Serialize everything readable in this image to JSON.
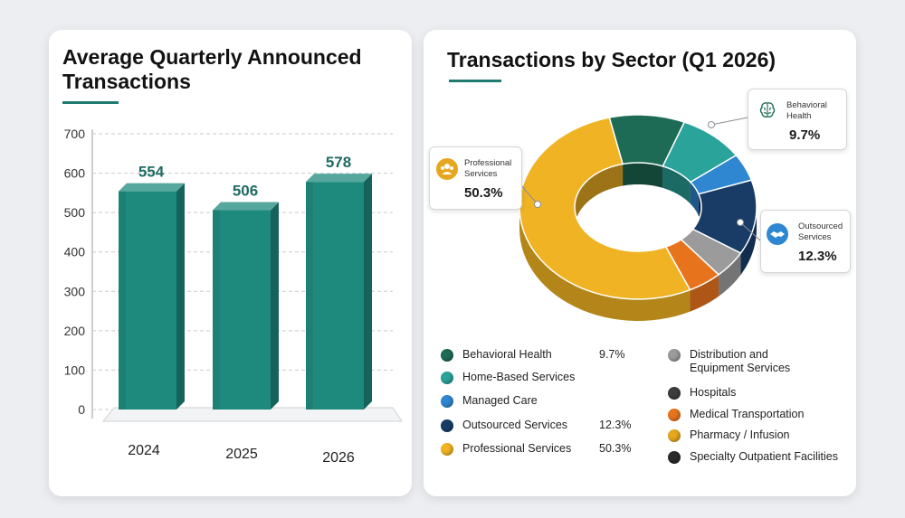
{
  "colors": {
    "bar": "#1e8a7e",
    "accent": "#1f7a70",
    "behavioral": "#1d6b55",
    "home": "#2aa39a",
    "managed": "#2f86d1",
    "outsourced": "#183c66",
    "professional": "#f0b323",
    "distribution": "#9b9b9b",
    "hospitals": "#3d3d3d",
    "medical": "#e8731d",
    "pharmacy": "#e6a61e",
    "specialty": "#2a2a2a"
  },
  "chart_data": [
    {
      "type": "bar",
      "title": "Average Quarterly Announced Transactions",
      "categories": [
        "2024",
        "2025",
        "2026"
      ],
      "values": [
        554,
        506,
        578
      ],
      "value_labels": [
        "554",
        "506",
        "578"
      ],
      "y_ticks": [
        "0",
        "100",
        "200",
        "300",
        "400",
        "500",
        "600",
        "700"
      ],
      "ylim": [
        0,
        700
      ],
      "grid": true
    },
    {
      "type": "pie",
      "title": "Transactions by Sector (Q1 2026)",
      "slices": [
        {
          "name": "Behavioral Health",
          "value": 9.7,
          "color_key": "behavioral"
        },
        {
          "name": "Home-Based Services",
          "value": 8.6,
          "color_key": "home"
        },
        {
          "name": "Managed Care",
          "value": 4.5,
          "color_key": "managed"
        },
        {
          "name": "Outsourced Services",
          "value": 12.3,
          "color_key": "outsourced"
        },
        {
          "name": "Distribution and Equipment Services",
          "value": 4.5,
          "color_key": "distribution"
        },
        {
          "name": "Medical Transportation",
          "value": 4.4,
          "color_key": "medical"
        },
        {
          "name": "Professional Services",
          "value": 50.3,
          "color_key": "professional"
        }
      ]
    }
  ],
  "callouts": {
    "professional": {
      "label_line1": "Professional",
      "label_line2": "Services",
      "value": "50.3%"
    },
    "behavioral": {
      "label_line1": "Behavioral",
      "label_line2": "Health",
      "value": "9.7%"
    },
    "outsourced": {
      "label_line1": "Outsourced",
      "label_line2": "Services",
      "value": "12.3%"
    }
  },
  "legend": {
    "left": [
      {
        "label": "Behavioral Health",
        "value": "9.7%",
        "color_key": "behavioral"
      },
      {
        "label": "Home-Based Services",
        "value": "",
        "color_key": "home"
      },
      {
        "label": "Managed Care",
        "value": "",
        "color_key": "managed"
      },
      {
        "label": "Outsourced Services",
        "value": "12.3%",
        "color_key": "outsourced"
      },
      {
        "label": "Professional Services",
        "value": "50.3%",
        "color_key": "professional"
      }
    ],
    "right": [
      {
        "label": "Distribution and",
        "label2": "Equipment Services",
        "color_key": "distribution"
      },
      {
        "label": "Hospitals",
        "color_key": "hospitals"
      },
      {
        "label": "Medical Transportation",
        "color_key": "medical"
      },
      {
        "label": "Pharmacy / Infusion",
        "color_key": "pharmacy"
      },
      {
        "label": "Specialty Outpatient Facilities",
        "color_key": "specialty"
      }
    ]
  }
}
